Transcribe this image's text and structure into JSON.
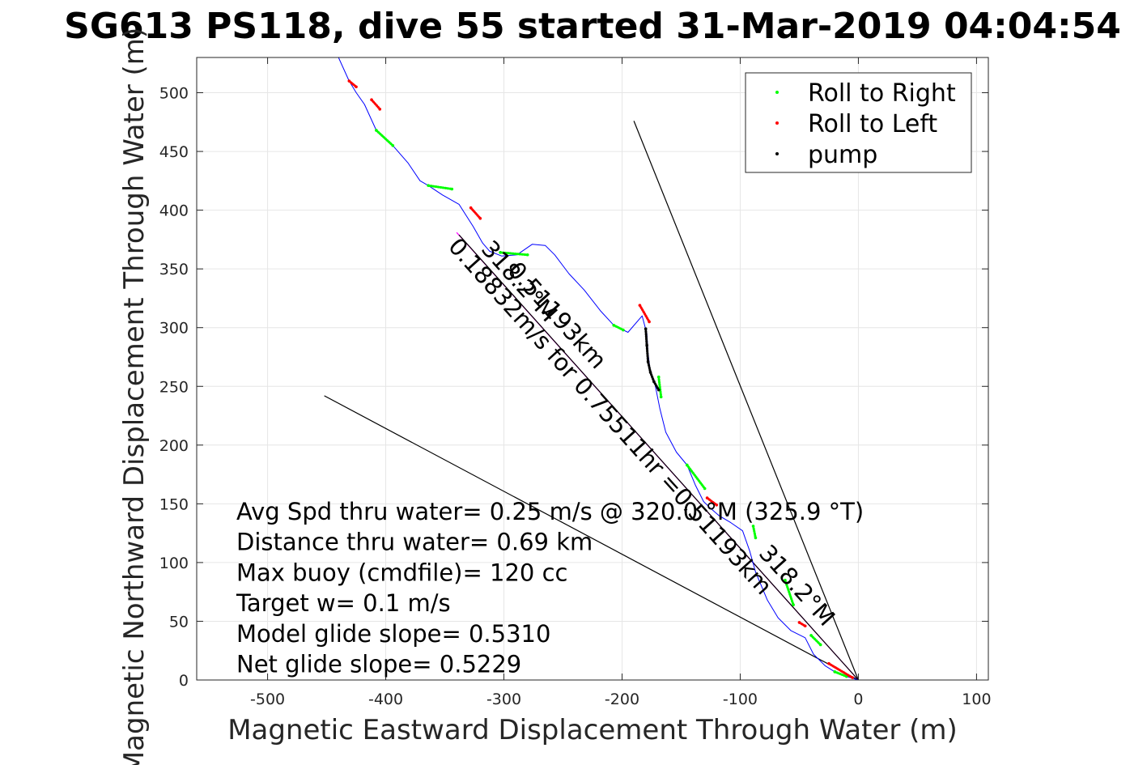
{
  "chart_data": {
    "type": "line",
    "title": "SG613 PS118, dive 55 started 31-Mar-2019 04:04:54",
    "xlabel": "Magnetic Eastward Displacement Through Water (m)",
    "ylabel": "Magnetic Northward Displacement Through Water (m)",
    "xlim": [
      -560,
      110
    ],
    "ylim": [
      0,
      530
    ],
    "xticks": [
      -500,
      -400,
      -300,
      -200,
      -100,
      0,
      100
    ],
    "yticks": [
      0,
      50,
      100,
      150,
      200,
      250,
      300,
      350,
      400,
      450,
      500
    ],
    "grid": true,
    "legend_position": "top-right",
    "legend": [
      {
        "label": "Roll to Right",
        "color": "#00ff00"
      },
      {
        "label": "Roll to Left",
        "color": "#ff0000"
      },
      {
        "label": "pump",
        "color": "#000000"
      }
    ],
    "series": [
      {
        "name": "track",
        "color": "#0000ff",
        "x": [
          -440,
          -431,
          -425,
          -418,
          -408,
          -394,
          -381,
          -371,
          -364,
          -352,
          -338,
          -326,
          -318,
          -312,
          -302,
          -289,
          -276,
          -265,
          -257,
          -245,
          -232,
          -218,
          -207,
          -195,
          -183,
          -179,
          -178,
          -176,
          -172,
          -168,
          -163,
          -154,
          -145,
          -138,
          -131,
          -126,
          -118,
          -108,
          -98,
          -92,
          -87,
          -77,
          -68,
          -57,
          -45,
          -38,
          -28,
          -20,
          -10,
          0
        ],
        "y": [
          530,
          510,
          500,
          490,
          468,
          455,
          440,
          425,
          421,
          413,
          405,
          386,
          372,
          365,
          361,
          362,
          371,
          370,
          362,
          346,
          332,
          314,
          302,
          296,
          310,
          295,
          278,
          262,
          251,
          231,
          211,
          194,
          183,
          166,
          152,
          147,
          140,
          134,
          127,
          110,
          92,
          68,
          53,
          42,
          36,
          22,
          12,
          7,
          3,
          0
        ]
      },
      {
        "name": "Roll to Right",
        "color": "#00ff00",
        "segments": [
          {
            "x": [
              -408,
              -394
            ],
            "y": [
              468,
              455
            ]
          },
          {
            "x": [
              -364,
              -344
            ],
            "y": [
              421,
              418
            ]
          },
          {
            "x": [
              -303,
              -280
            ],
            "y": [
              364,
              362
            ]
          },
          {
            "x": [
              -207,
              -199
            ],
            "y": [
              302,
              298
            ]
          },
          {
            "x": [
              -169,
              -167
            ],
            "y": [
              258,
              241
            ]
          },
          {
            "x": [
              -145,
              -130
            ],
            "y": [
              183,
              163
            ]
          },
          {
            "x": [
              -89,
              -87
            ],
            "y": [
              131,
              121
            ]
          },
          {
            "x": [
              -62,
              -55
            ],
            "y": [
              85,
              64
            ]
          },
          {
            "x": [
              -40,
              -32
            ],
            "y": [
              38,
              30
            ]
          },
          {
            "x": [
              -20,
              -10
            ],
            "y": [
              7,
              3
            ]
          }
        ]
      },
      {
        "name": "Roll to Left",
        "color": "#ff0000",
        "segments": [
          {
            "x": [
              -431,
              -425
            ],
            "y": [
              510,
              505
            ]
          },
          {
            "x": [
              -412,
              -405
            ],
            "y": [
              494,
              486
            ]
          },
          {
            "x": [
              -328,
              -320
            ],
            "y": [
              402,
              393
            ]
          },
          {
            "x": [
              -185,
              -177
            ],
            "y": [
              319,
              305
            ]
          },
          {
            "x": [
              -128,
              -120
            ],
            "y": [
              155,
              149
            ]
          },
          {
            "x": [
              -50,
              -45
            ],
            "y": [
              49,
              46
            ]
          },
          {
            "x": [
              -25,
              -5
            ],
            "y": [
              14,
              2
            ]
          }
        ]
      },
      {
        "name": "pump",
        "color": "#000000",
        "segments": [
          {
            "x": [
              -180,
              -179,
              -178,
              -176,
              -173,
              -169
            ],
            "y": [
              299,
              285,
              271,
              262,
              254,
              247
            ]
          }
        ]
      }
    ],
    "reference_lines": [
      {
        "x": [
          0,
          -190
        ],
        "y": [
          0,
          476
        ],
        "color": "#000000"
      },
      {
        "x": [
          0,
          -452
        ],
        "y": [
          0,
          242
        ],
        "color": "#000000"
      },
      {
        "x": [
          0,
          -340
        ],
        "y": [
          0,
          381
        ],
        "color": "#ff00ff"
      },
      {
        "x": [
          0,
          -338
        ],
        "y": [
          0,
          379
        ],
        "color": "#000000"
      }
    ],
    "annotations": [
      "Avg Spd thru water=  0.25 m/s @ 320.0 °M (325.9 °T)",
      "Distance thru water=  0.69 km",
      "Max buoy (cmdfile)= 120 cc",
      "Target w= 0.1 m/s",
      "Model glide slope= 0.5310",
      "Net glide slope= 0.5229"
    ],
    "rotated_labels": [
      {
        "text": "318.2°M",
        "x": -292,
        "y": 335,
        "angle_deg": 48
      },
      {
        "text": "0.51193km",
        "x": -260,
        "y": 306,
        "angle_deg": 48
      },
      {
        "text": "0.18832m/s for 0.75511hr =0.51193km",
        "x": -215,
        "y": 220,
        "angle_deg": 48
      },
      {
        "text": "318.2°M",
        "x": -57,
        "y": 76,
        "angle_deg": 48
      }
    ]
  }
}
